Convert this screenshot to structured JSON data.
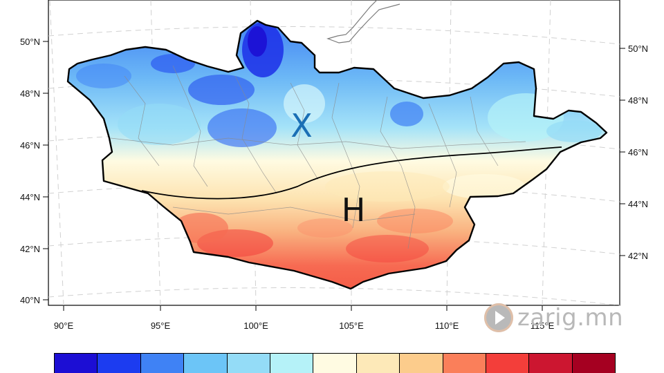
{
  "map": {
    "lat_labels_left": [
      "50°N",
      "48°N",
      "46°N",
      "44°N",
      "42°N",
      "40°N"
    ],
    "lat_labels_right": [
      "50°N",
      "48°N",
      "46°N",
      "44°N",
      "42°N"
    ],
    "lon_labels": [
      "90°E",
      "95°E",
      "100°E",
      "105°E",
      "110°E",
      "115°E"
    ],
    "region_labels": {
      "north": "X",
      "south": "H"
    },
    "colors": {
      "north_label": "#1a6fb5",
      "south_label": "#111111",
      "boundary": "#000000",
      "grid": "#cfcfcf"
    }
  },
  "watermark": {
    "text": "zarig.mn",
    "icon": "play-icon"
  },
  "colorbar": {
    "colors": [
      "#1c0ed4",
      "#1c3cf0",
      "#3f82f5",
      "#6cc5f7",
      "#94dcf7",
      "#b5f2f8",
      "#fffbe2",
      "#fde9b8",
      "#fccc8c",
      "#fa7f5a",
      "#f33e3a",
      "#cc1630",
      "#a50021"
    ]
  }
}
